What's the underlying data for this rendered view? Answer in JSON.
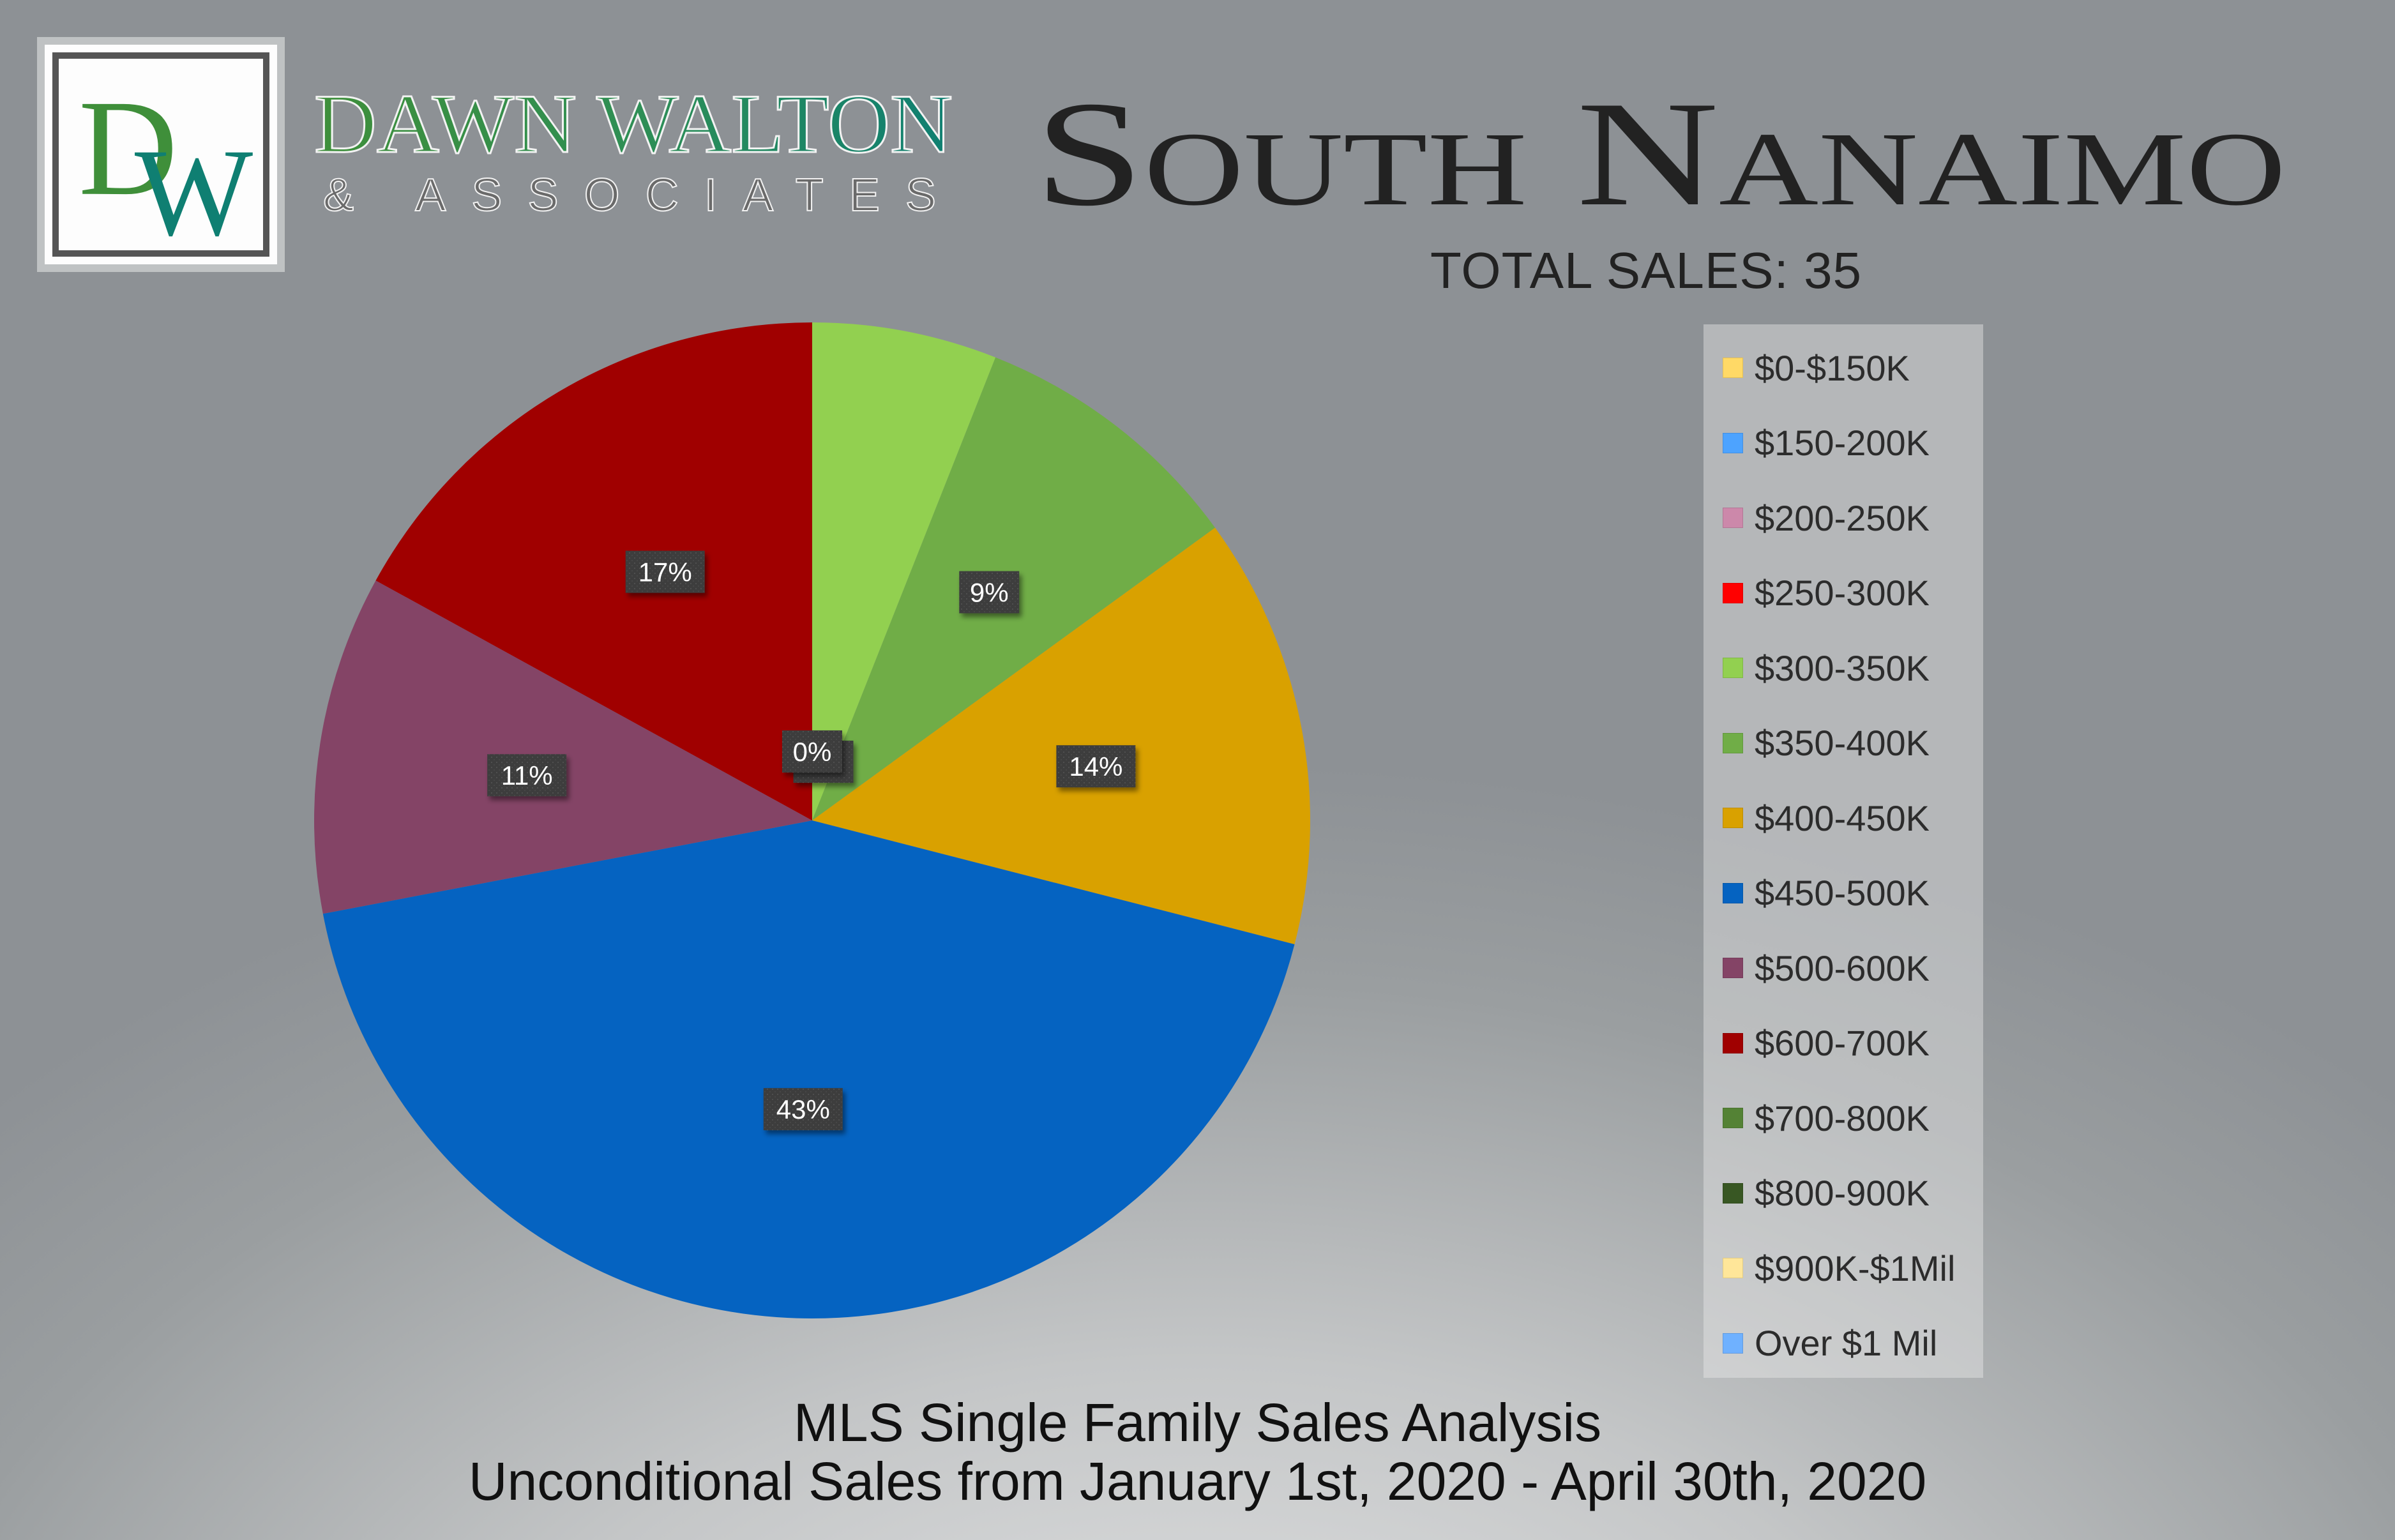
{
  "logo": {
    "monogram": "DW",
    "brand_name": "DAWN WALTON",
    "brand_sub": "& ASSOCIATES",
    "colors": {
      "green": "#3f8f3a",
      "teal": "#0f7f72"
    }
  },
  "header": {
    "title": "South Nanaimo",
    "total_sales": "TOTAL SALES: 35"
  },
  "footer": {
    "line1": "MLS Single Family Sales Analysis",
    "line2": "Unconditional Sales from January 1st, 2020 - April 30th, 2020"
  },
  "chart_data": {
    "type": "pie",
    "title": "",
    "series": [
      {
        "name": "$0-$150K",
        "percent": 0,
        "label": "0%",
        "color": "#ffd966"
      },
      {
        "name": "$150-200K",
        "percent": 0,
        "label": "0%",
        "color": "#4da3ff"
      },
      {
        "name": "$200-250K",
        "percent": 0,
        "label": "0%",
        "color": "#cc88aa"
      },
      {
        "name": "$250-300K",
        "percent": 0,
        "label": "0%",
        "color": "#ff0000"
      },
      {
        "name": "$300-350K",
        "percent": 6,
        "label": "6%",
        "color": "#92d050"
      },
      {
        "name": "$350-400K",
        "percent": 9,
        "label": "9%",
        "color": "#70ad47"
      },
      {
        "name": "$400-450K",
        "percent": 14,
        "label": "14%",
        "color": "#d9a100"
      },
      {
        "name": "$450-500K",
        "percent": 43,
        "label": "43%",
        "color": "#0563c1"
      },
      {
        "name": "$500-600K",
        "percent": 11,
        "label": "11%",
        "color": "#844466"
      },
      {
        "name": "$600-700K",
        "percent": 17,
        "label": "17%",
        "color": "#a00000"
      },
      {
        "name": "$700-800K",
        "percent": 0,
        "label": "0%",
        "color": "#548235"
      },
      {
        "name": "$800-900K",
        "percent": 0,
        "label": "0%",
        "color": "#385723"
      },
      {
        "name": "$900K-$1Mil",
        "percent": 0,
        "label": "0%",
        "color": "#ffe699"
      },
      {
        "name": "Over $1 Mil",
        "percent": 0,
        "label": "0%",
        "color": "#6fb1ff"
      }
    ],
    "shown_labels": [
      "$300-350K",
      "$350-400K",
      "$400-450K",
      "$450-500K",
      "$500-600K",
      "$600-700K",
      "$700-800K"
    ],
    "legend_position": "right"
  }
}
